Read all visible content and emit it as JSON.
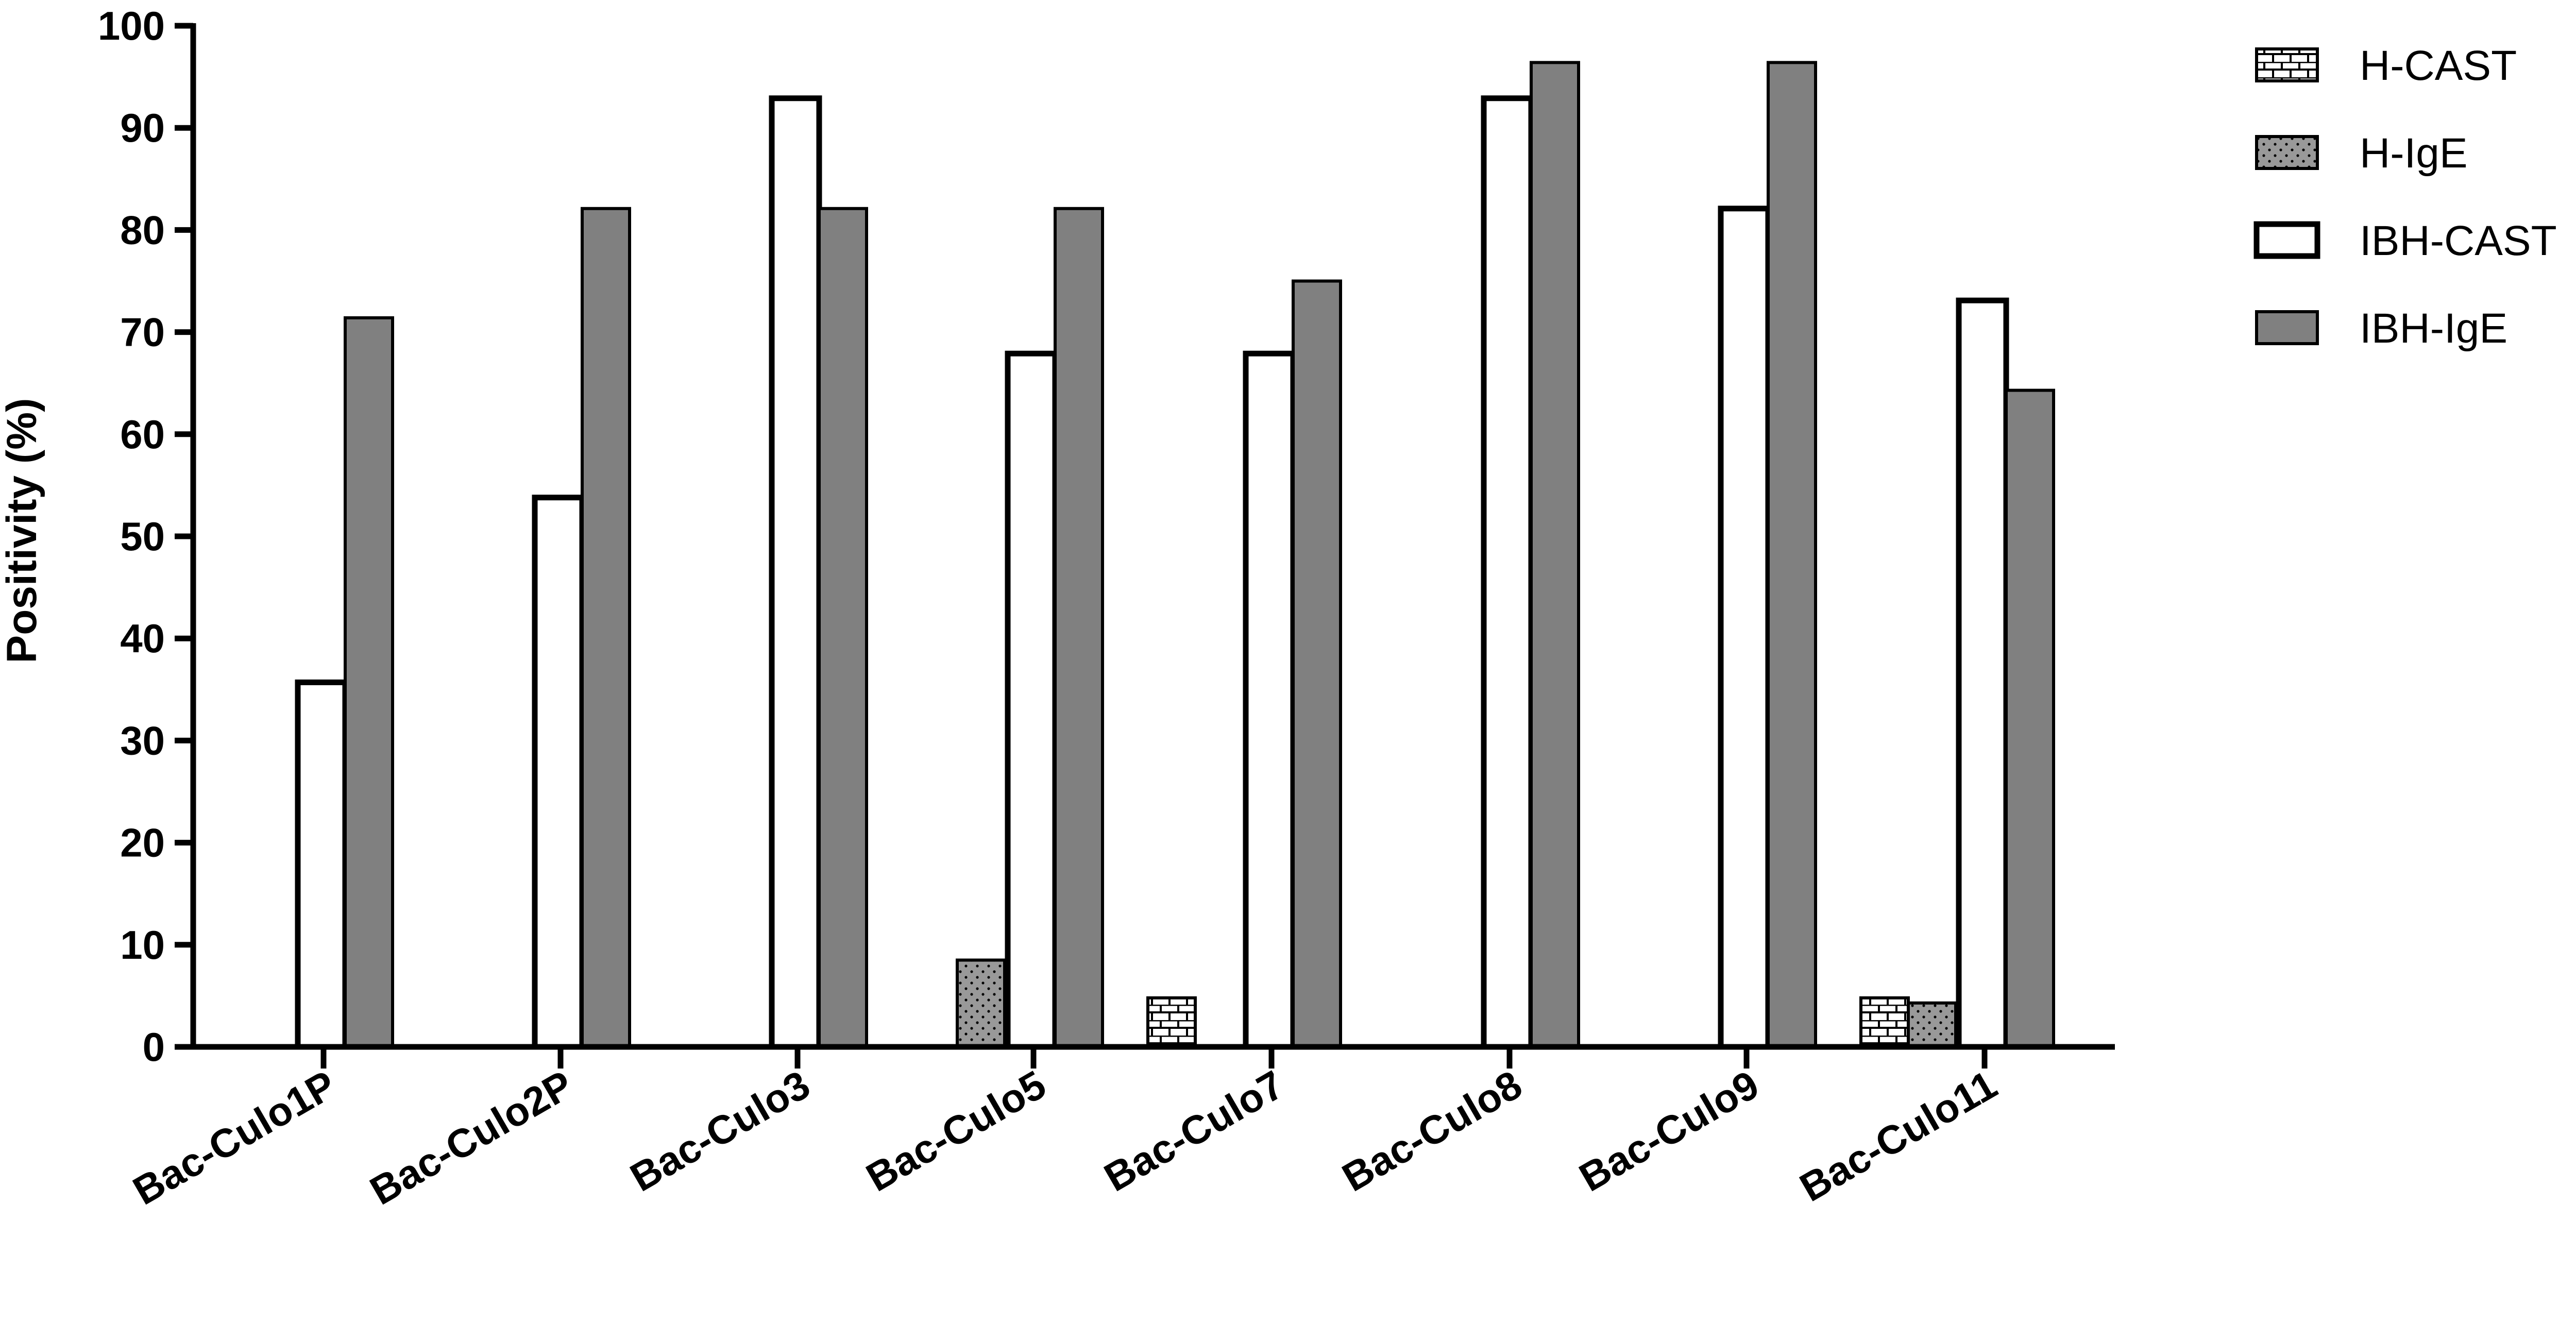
{
  "chart_data": {
    "type": "bar",
    "ylabel": "Positivity (%)",
    "xlabel": "",
    "ylim": [
      0,
      100
    ],
    "yticks": [
      0,
      10,
      20,
      30,
      40,
      50,
      60,
      70,
      80,
      90,
      100
    ],
    "categories": [
      "Bac-Culo1P",
      "Bac-Culo2P",
      "Bac-Culo3",
      "Bac-Culo5",
      "Bac-Culo7",
      "Bac-Culo8",
      "Bac-Culo9",
      "Bac-Culo11"
    ],
    "series": [
      {
        "name": "H-CAST",
        "pattern": "brick",
        "color": "#ffffff",
        "values": [
          0,
          0,
          0,
          0,
          4.8,
          0,
          0,
          4.8
        ]
      },
      {
        "name": "H-IgE",
        "pattern": "dots",
        "color": "#999999",
        "values": [
          0,
          0,
          0,
          8.5,
          0,
          0,
          0,
          4.3
        ]
      },
      {
        "name": "IBH-CAST",
        "pattern": "none",
        "color": "#ffffff",
        "values": [
          35.7,
          53.8,
          92.9,
          67.9,
          67.9,
          92.9,
          82.1,
          73.1
        ]
      },
      {
        "name": "IBH-IgE",
        "pattern": "none",
        "color": "#808080",
        "values": [
          71.4,
          82.1,
          82.1,
          82.1,
          75.0,
          96.4,
          96.4,
          64.3
        ]
      }
    ],
    "legend": {
      "position": "top-right"
    },
    "grid": false
  }
}
